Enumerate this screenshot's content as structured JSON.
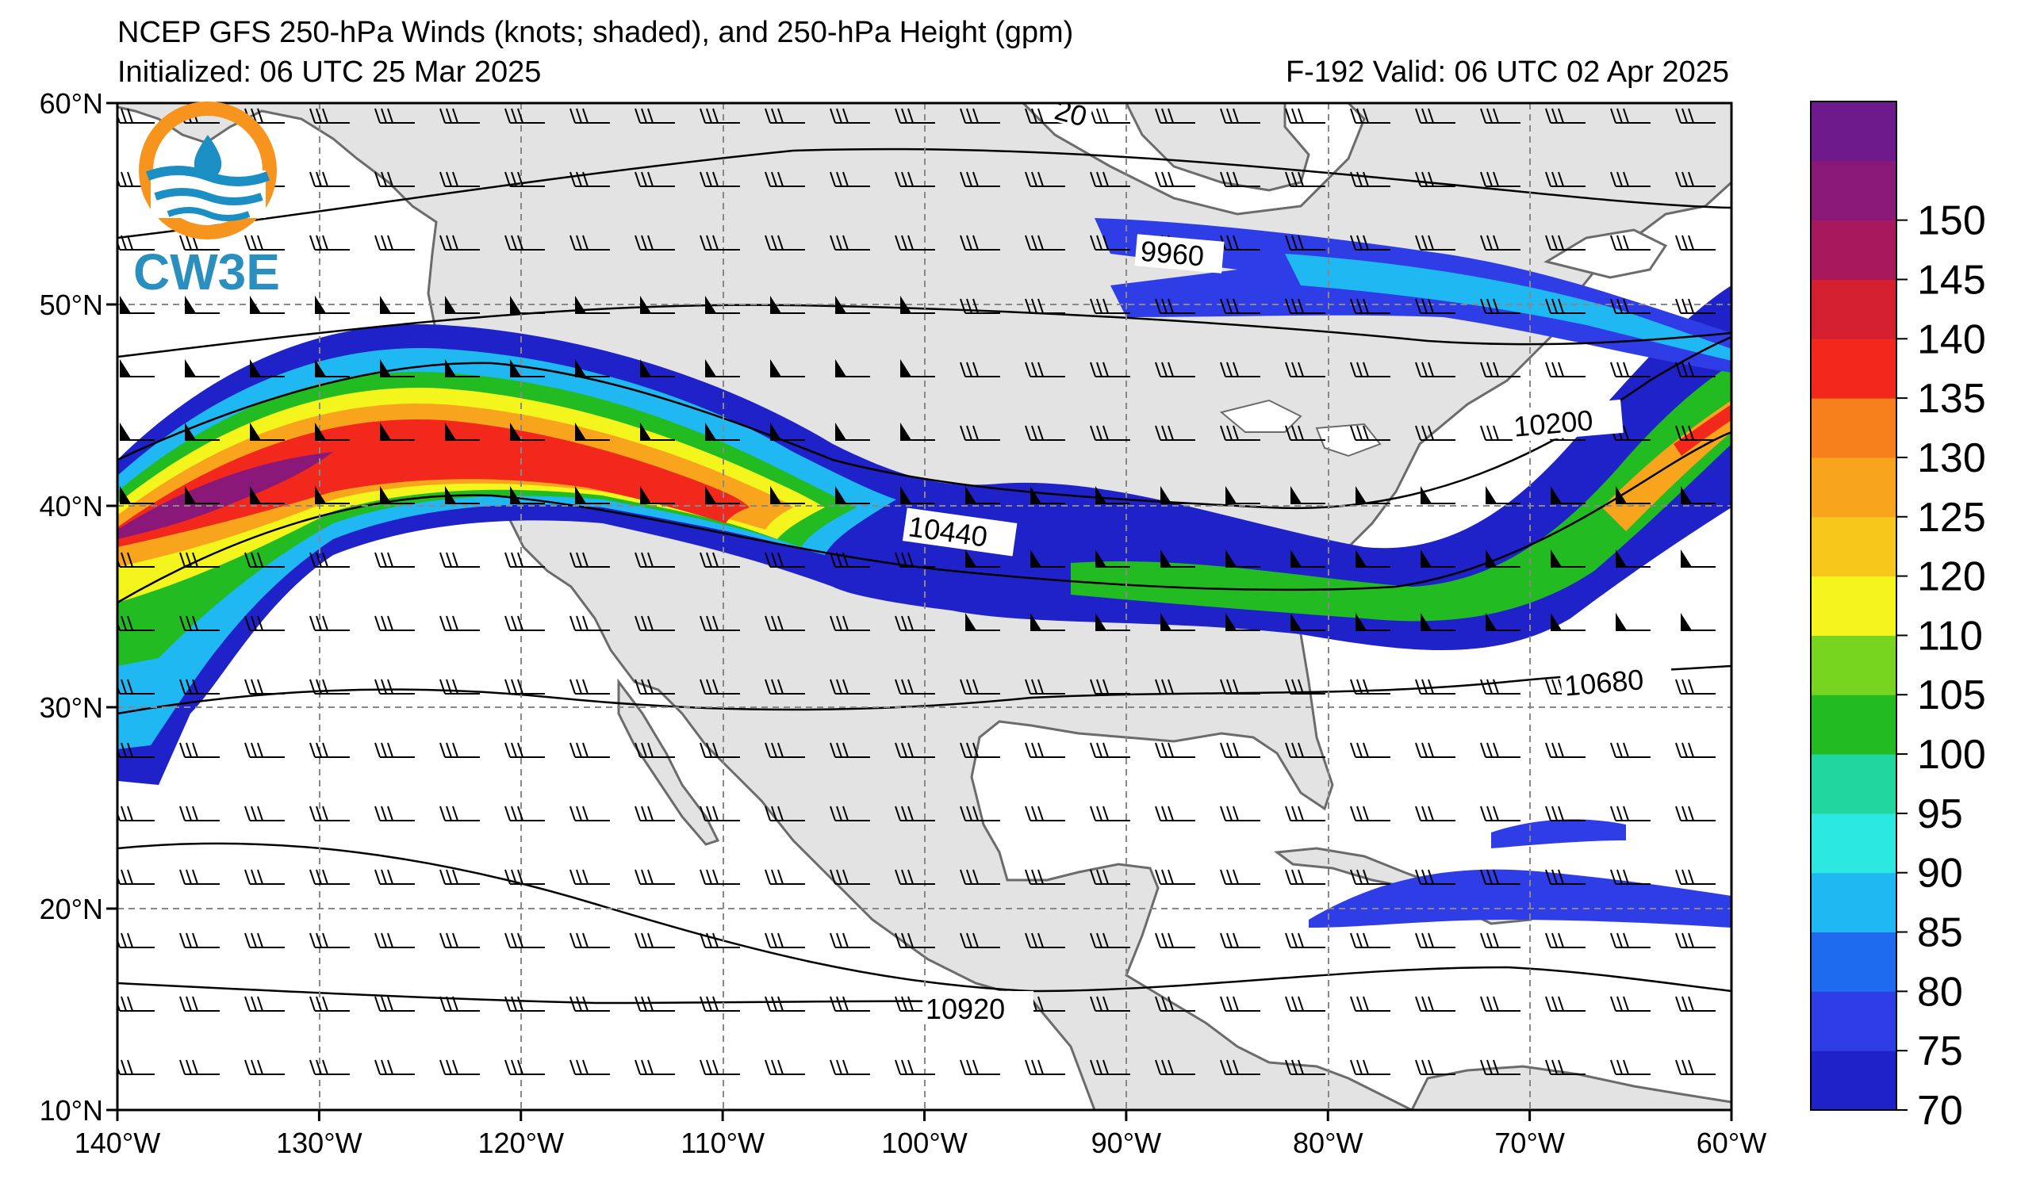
{
  "header": {
    "title": "NCEP GFS 250-hPa Winds (knots; shaded), and 250-hPa Height (gpm)",
    "initialized": "Initialized: 06 UTC 25 Mar 2025",
    "valid": "F-192  Valid: 06 UTC 02 Apr 2025"
  },
  "logo": {
    "text": "CW3E",
    "colors": {
      "ring_orange": "#F7941D",
      "ring_blue": "#1B8FC4",
      "text": "#2A8FBF"
    }
  },
  "map": {
    "land_color": "#E3E3E3",
    "ocean_color": "#FFFFFF",
    "lon_labels": [
      "140°W",
      "130°W",
      "120°W",
      "110°W",
      "100°W",
      "90°W",
      "80°W",
      "70°W",
      "60°W"
    ],
    "lat_labels": [
      "60°N",
      "50°N",
      "40°N",
      "30°N",
      "20°N",
      "10°N"
    ]
  },
  "colorbar": {
    "ticks": [
      "70",
      "75",
      "80",
      "85",
      "90",
      "95",
      "100",
      "105",
      "110",
      "120",
      "125",
      "130",
      "135",
      "140",
      "145",
      "150"
    ],
    "colors": [
      "#1E22C8",
      "#2E3DE6",
      "#1E6BEF",
      "#1FB8F2",
      "#2BE8E0",
      "#22D6A0",
      "#22BB22",
      "#77D41F",
      "#F5F51E",
      "#F7C81C",
      "#F8A41C",
      "#F77F1C",
      "#F2281C",
      "#D4202E",
      "#A8185C",
      "#8A1878",
      "#6E1A8C"
    ]
  },
  "contour_labels": [
    "9960",
    "10200",
    "10440",
    "10680",
    "10920",
    "20"
  ]
}
